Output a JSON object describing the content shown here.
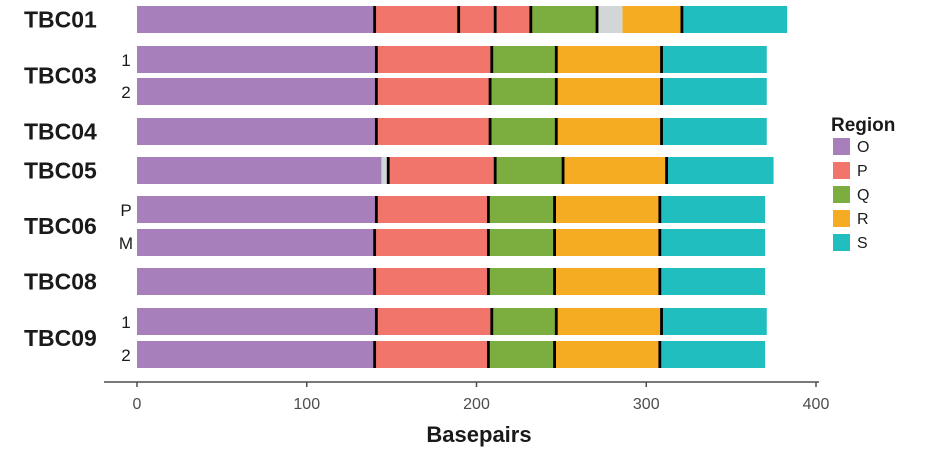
{
  "chart_data": {
    "type": "bar",
    "orientation": "horizontal",
    "stacked": true,
    "xlabel": "Basepairs",
    "xlim": [
      0,
      400
    ],
    "x_ticks": [
      0,
      100,
      200,
      300,
      400
    ],
    "grid": false,
    "legend": {
      "title": "Region",
      "placement": "right",
      "entries": [
        {
          "name": "O",
          "color": "#A77FBA"
        },
        {
          "name": "P",
          "color": "#F2756B"
        },
        {
          "name": "Q",
          "color": "#7CAD3F"
        },
        {
          "name": "R",
          "color": "#F6AC22"
        },
        {
          "name": "S",
          "color": "#21BEBF"
        }
      ]
    },
    "gap_color": "#D3D6D6",
    "rows": [
      {
        "group": "TBC01",
        "sub": "",
        "segments": [
          [
            "O",
            0,
            140
          ],
          [
            "P",
            140,
            189
          ],
          [
            "gap",
            189,
            190
          ],
          [
            "P",
            190,
            211
          ],
          [
            "P",
            211,
            232
          ],
          [
            "Q",
            232,
            271
          ],
          [
            "gap",
            271,
            286
          ],
          [
            "R",
            286,
            321
          ],
          [
            "S",
            321,
            383
          ]
        ]
      },
      {
        "group": "TBC03",
        "sub": "1",
        "segments": [
          [
            "O",
            0,
            141
          ],
          [
            "P",
            141,
            209
          ],
          [
            "Q",
            209,
            247
          ],
          [
            "R",
            247,
            309
          ],
          [
            "S",
            309,
            371
          ]
        ]
      },
      {
        "group": "TBC03",
        "sub": "2",
        "segments": [
          [
            "O",
            0,
            141
          ],
          [
            "P",
            141,
            208
          ],
          [
            "Q",
            208,
            247
          ],
          [
            "R",
            247,
            309
          ],
          [
            "S",
            309,
            371
          ]
        ]
      },
      {
        "group": "TBC04",
        "sub": "",
        "segments": [
          [
            "O",
            0,
            141
          ],
          [
            "P",
            141,
            208
          ],
          [
            "Q",
            208,
            247
          ],
          [
            "R",
            247,
            309
          ],
          [
            "S",
            309,
            371
          ]
        ]
      },
      {
        "group": "TBC05",
        "sub": "",
        "segments": [
          [
            "O",
            0,
            144
          ],
          [
            "gap",
            144,
            148
          ],
          [
            "P",
            148,
            211
          ],
          [
            "Q",
            211,
            251
          ],
          [
            "R",
            251,
            312
          ],
          [
            "S",
            312,
            375
          ]
        ]
      },
      {
        "group": "TBC06",
        "sub": "P",
        "segments": [
          [
            "O",
            0,
            141
          ],
          [
            "P",
            141,
            207
          ],
          [
            "Q",
            207,
            246
          ],
          [
            "R",
            246,
            308
          ],
          [
            "S",
            308,
            370
          ]
        ]
      },
      {
        "group": "TBC06",
        "sub": "M",
        "segments": [
          [
            "O",
            0,
            140
          ],
          [
            "P",
            140,
            207
          ],
          [
            "Q",
            207,
            246
          ],
          [
            "R",
            246,
            308
          ],
          [
            "S",
            308,
            370
          ]
        ]
      },
      {
        "group": "TBC08",
        "sub": "",
        "segments": [
          [
            "O",
            0,
            140
          ],
          [
            "P",
            140,
            207
          ],
          [
            "Q",
            207,
            246
          ],
          [
            "R",
            246,
            308
          ],
          [
            "S",
            308,
            370
          ]
        ]
      },
      {
        "group": "TBC09",
        "sub": "1",
        "segments": [
          [
            "O",
            0,
            141
          ],
          [
            "P",
            141,
            209
          ],
          [
            "Q",
            209,
            247
          ],
          [
            "R",
            247,
            309
          ],
          [
            "S",
            309,
            371
          ]
        ]
      },
      {
        "group": "TBC09",
        "sub": "2",
        "segments": [
          [
            "O",
            0,
            140
          ],
          [
            "P",
            140,
            207
          ],
          [
            "Q",
            207,
            246
          ],
          [
            "R",
            246,
            308
          ],
          [
            "S",
            308,
            370
          ]
        ]
      }
    ],
    "separators": [
      {
        "row": 0,
        "x": [
          140,
          189.5,
          211,
          232,
          271,
          321
        ]
      },
      {
        "row": 1,
        "x": [
          141,
          209,
          247,
          309
        ]
      },
      {
        "row": 2,
        "x": [
          141,
          208,
          247,
          309
        ]
      },
      {
        "row": 3,
        "x": [
          141,
          208,
          247,
          309
        ]
      },
      {
        "row": 4,
        "x": [
          148,
          211,
          251,
          312
        ]
      },
      {
        "row": 5,
        "x": [
          141,
          207,
          246,
          308
        ]
      },
      {
        "row": 6,
        "x": [
          140,
          207,
          246,
          308
        ]
      },
      {
        "row": 7,
        "x": [
          140,
          207,
          246,
          308
        ]
      },
      {
        "row": 8,
        "x": [
          141,
          209,
          247,
          309
        ]
      },
      {
        "row": 9,
        "x": [
          140,
          207,
          246,
          308
        ]
      }
    ]
  }
}
